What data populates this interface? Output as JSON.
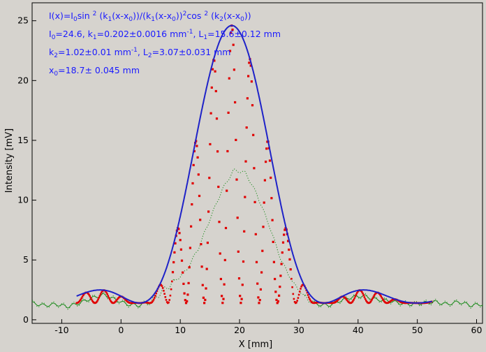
{
  "chart_data": {
    "type": "scatter",
    "title": "",
    "xlabel": "X [mm]",
    "ylabel": "Intensity [mV]",
    "xlim": [
      -15,
      61
    ],
    "ylim": [
      -0.3,
      26.5
    ],
    "xticks": [
      -10,
      0,
      10,
      20,
      30,
      40,
      50,
      60
    ],
    "yticks": [
      0,
      5,
      10,
      15,
      20,
      25
    ],
    "grid": false,
    "background": "#d6d3ce",
    "annotations": {
      "line1": {
        "a": "I(x)=I",
        "a_sub": "0",
        "b": "sin ",
        "b_sup": "2",
        "c": " (k",
        "c_sub": "1",
        "d": "(x-x",
        "d_sub": "0",
        "e": "))/(k",
        "e_sub": "1",
        "f": "(x-x",
        "f_sub": "0",
        "g": "))",
        "g_sup": "2",
        "h": "cos ",
        "h_sup": "2",
        "i": " (k",
        "i_sub": "2",
        "j": "(x-x",
        "j_sub": "0",
        "k": "))"
      },
      "line2": {
        "a": "I",
        "a_sub": "0",
        "b": "=24.6,  k",
        "b_sub": "1",
        "c": "=0.202±0.0016 mm",
        "c_sup": "-1",
        "d": ",   L",
        "d_sub": "1",
        "e": "=15.6±0.12 mm"
      },
      "line3": {
        "a": "k",
        "a_sub": "2",
        "b": "=1.02±0.01 mm",
        "b_sup": "-1",
        "c": ",   L",
        "c_sub": "2",
        "d": "=3.07±0.031 mm"
      },
      "line4": {
        "a": "x",
        "a_sub": "0",
        "b": "=18.7±   0.045 mm"
      },
      "color": "#1a1aff"
    },
    "model": {
      "I0": 24.6,
      "k1": 0.202,
      "k2": 1.02,
      "x0": 18.7,
      "baseline": 1.4,
      "envelope_color": "#1e22c8",
      "points_color": "#e00000"
    },
    "series": [
      {
        "kind": "fit-envelope",
        "x_range": [
          -7.5,
          52.5
        ],
        "color": "#1e22c8"
      },
      {
        "kind": "measured-points",
        "x_range": [
          -7.5,
          52.5
        ],
        "color": "#e00000"
      },
      {
        "kind": "background-trace",
        "color": "#1a8a1a",
        "x": [
          -15,
          -13,
          -11,
          -9,
          -7,
          -5,
          -3,
          -1,
          1,
          3,
          5,
          7,
          9,
          11,
          13,
          15,
          17,
          19,
          21,
          23,
          25,
          27,
          29,
          31,
          33,
          35,
          37,
          39,
          41,
          43,
          45,
          47,
          49,
          51,
          53,
          55,
          57,
          59,
          61
        ],
        "y": [
          1.4,
          1.2,
          1.3,
          1.1,
          1.4,
          1.8,
          2.1,
          1.7,
          1.3,
          1.2,
          1.5,
          2.4,
          3.2,
          4.1,
          5.9,
          8.4,
          10.8,
          12.5,
          12.3,
          10.4,
          7.9,
          5.0,
          3.1,
          1.9,
          1.3,
          1.2,
          1.6,
          1.9,
          2.0,
          1.7,
          1.6,
          1.4,
          1.3,
          1.4,
          1.5,
          1.3,
          1.5,
          1.2,
          1.3
        ]
      }
    ]
  }
}
